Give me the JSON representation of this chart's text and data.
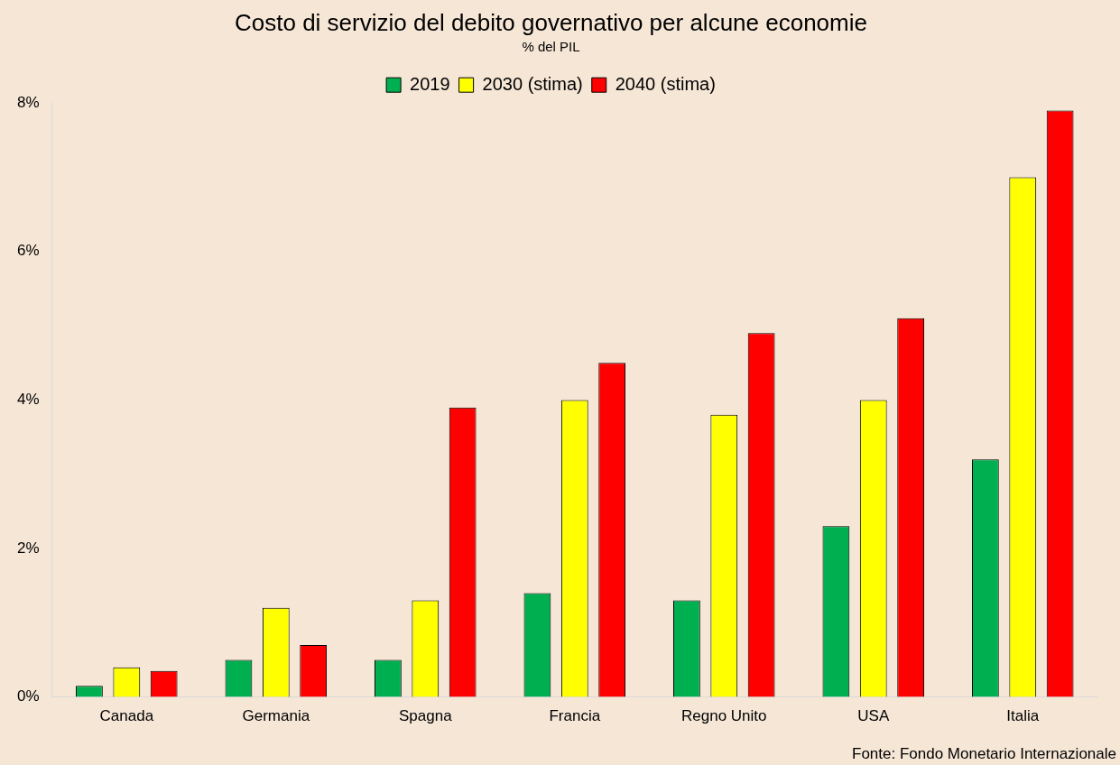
{
  "chart_data": {
    "type": "bar",
    "title": "Costo di servizio del debito governativo per alcune economie",
    "subtitle": "% del PIL",
    "categories": [
      "Canada",
      "Germania",
      "Spagna",
      "Francia",
      "Regno Unito",
      "USA",
      "Italia"
    ],
    "series": [
      {
        "name": "2019",
        "color": "#00b050",
        "values": [
          0.15,
          0.5,
          0.5,
          1.4,
          1.3,
          2.3,
          3.2
        ]
      },
      {
        "name": "2030 (stima)",
        "color": "#ffff00",
        "values": [
          0.4,
          1.2,
          1.3,
          4.0,
          3.8,
          4.0,
          7.0
        ]
      },
      {
        "name": "2040 (stima)",
        "color": "#ff0000",
        "values": [
          0.35,
          0.7,
          3.9,
          4.5,
          4.9,
          5.1,
          7.9
        ]
      }
    ],
    "ylim": [
      0,
      8
    ],
    "yticks": [
      {
        "value": 0,
        "label": "0%"
      },
      {
        "value": 2,
        "label": "2%"
      },
      {
        "value": 4,
        "label": "4%"
      },
      {
        "value": 6,
        "label": "6%"
      },
      {
        "value": 8,
        "label": "8%"
      }
    ],
    "grid": false,
    "legend": "top",
    "annotations": [
      "Fonte: Fondo Monetario Internazionale"
    ]
  }
}
